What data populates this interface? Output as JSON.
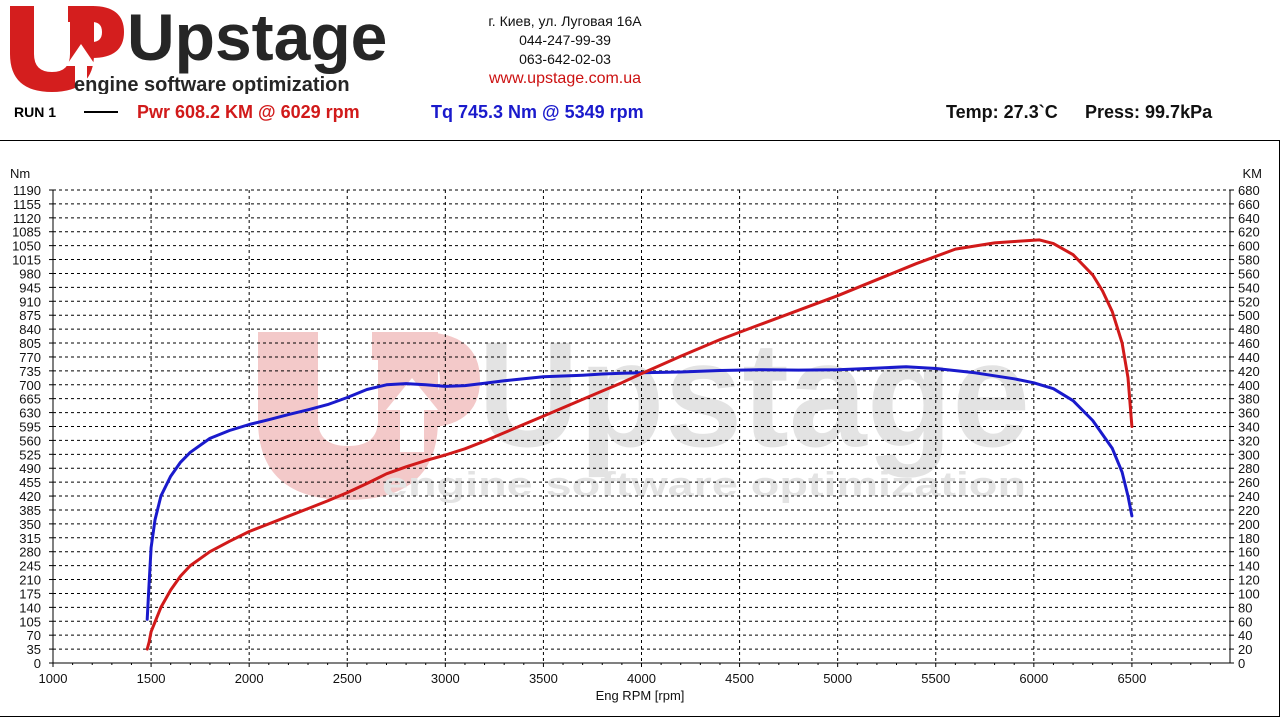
{
  "brand": {
    "logo_text": "Upstage",
    "tagline": "engine software optimization"
  },
  "contacts": {
    "address": "г. Киев, ул. Луговая 16А",
    "phone1": "044-247-99-39",
    "phone2": "063-642-02-03",
    "website": "www.upstage.com.ua"
  },
  "run": {
    "label": "RUN 1",
    "power_text": "Pwr  608.2 KM @ 6029 rpm",
    "torque_text": "Tq 745.3 Nm @ 5349 rpm",
    "temp_text": "Temp: 27.3`C",
    "press_text": "Press: 99.7kPa"
  },
  "colors": {
    "power": "#d11a1a",
    "torque": "#1a1acc",
    "watermark_red": "#f3c9c9",
    "watermark_gray": "#e3e3e3"
  },
  "chart_data": {
    "type": "line",
    "title": "",
    "xlabel": "Eng RPM [rpm]",
    "ylabel_left": "Nm",
    "ylabel_right": "KM",
    "xlim": [
      1000,
      7000
    ],
    "ylim_left": [
      0,
      1190
    ],
    "ylim_right": [
      0,
      680
    ],
    "x_ticks": [
      1000,
      1500,
      2000,
      2500,
      3000,
      3500,
      4000,
      4500,
      5000,
      5500,
      6000,
      6500
    ],
    "y_left_ticks": [
      0,
      35,
      70,
      105,
      140,
      175,
      210,
      245,
      280,
      315,
      350,
      385,
      420,
      455,
      490,
      525,
      560,
      595,
      630,
      665,
      700,
      735,
      770,
      805,
      840,
      875,
      910,
      945,
      980,
      1015,
      1050,
      1085,
      1120,
      1155,
      1190
    ],
    "y_right_ticks": [
      0,
      20,
      40,
      60,
      80,
      100,
      120,
      140,
      160,
      180,
      200,
      220,
      240,
      260,
      280,
      300,
      320,
      340,
      360,
      380,
      400,
      420,
      440,
      460,
      480,
      500,
      520,
      540,
      560,
      580,
      600,
      620,
      640,
      660,
      680
    ],
    "grid": true,
    "series": [
      {
        "name": "Tq",
        "axis": "left",
        "unit": "Nm",
        "color": "#1a1acc",
        "x": [
          1480,
          1490,
          1500,
          1520,
          1550,
          1600,
          1650,
          1700,
          1800,
          1900,
          2000,
          2100,
          2200,
          2300,
          2400,
          2500,
          2600,
          2700,
          2800,
          2900,
          3000,
          3100,
          3200,
          3300,
          3400,
          3500,
          3600,
          3700,
          3800,
          3900,
          4000,
          4200,
          4400,
          4600,
          4800,
          5000,
          5200,
          5349,
          5500,
          5700,
          5900,
          6000,
          6100,
          6200,
          6300,
          6400,
          6450,
          6480,
          6500
        ],
        "y": [
          110,
          200,
          290,
          360,
          420,
          470,
          505,
          530,
          565,
          585,
          600,
          612,
          625,
          637,
          650,
          668,
          688,
          700,
          703,
          700,
          696,
          698,
          704,
          710,
          715,
          720,
          722,
          724,
          727,
          729,
          730,
          732,
          736,
          738,
          737,
          738,
          742,
          745.3,
          741,
          730,
          715,
          705,
          690,
          660,
          610,
          540,
          480,
          420,
          370
        ]
      },
      {
        "name": "Pwr",
        "axis": "right",
        "unit": "KM",
        "color": "#d11a1a",
        "x": [
          1480,
          1490,
          1500,
          1550,
          1600,
          1650,
          1700,
          1800,
          1900,
          2000,
          2100,
          2200,
          2300,
          2400,
          2500,
          2600,
          2700,
          2800,
          2900,
          3000,
          3100,
          3200,
          3300,
          3400,
          3500,
          3600,
          3700,
          3800,
          3900,
          4000,
          4200,
          4400,
          4600,
          4800,
          5000,
          5200,
          5400,
          5600,
          5800,
          5900,
          6029,
          6100,
          6200,
          6300,
          6350,
          6400,
          6450,
          6480,
          6500
        ],
        "y": [
          20,
          30,
          45,
          80,
          105,
          125,
          140,
          160,
          175,
          189,
          200,
          211,
          222,
          233,
          245,
          258,
          272,
          282,
          291,
          299,
          308,
          319,
          331,
          343,
          355,
          367,
          379,
          391,
          403,
          416,
          441,
          465,
          486,
          507,
          528,
          551,
          574,
          595,
          604,
          606,
          608.2,
          603,
          587,
          558,
          535,
          505,
          460,
          410,
          340
        ]
      }
    ]
  }
}
